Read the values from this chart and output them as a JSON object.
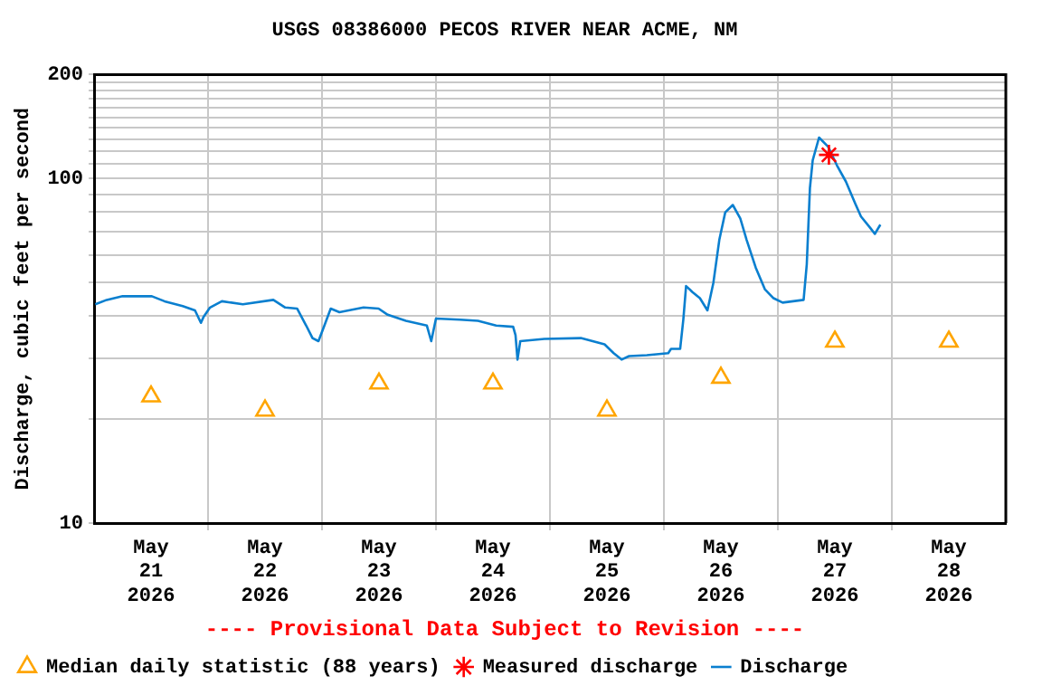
{
  "chart_data": {
    "type": "line",
    "title": "USGS 08386000 PECOS RIVER NEAR ACME, NM",
    "ylabel": "Discharge, cubic feet per second",
    "annotations": [
      "---- Provisional Data Subject to Revision ----"
    ],
    "log": "y",
    "grid": true,
    "legend": "bottom",
    "xlim": [
      "2026-05-21T00:00",
      "2026-05-29T00:00"
    ],
    "xticks": [
      {
        "value": "2026-05-21T12:00",
        "label": "May\n21\n2026"
      },
      {
        "value": "2026-05-22T00:00",
        "label": null
      },
      {
        "value": "2026-05-22T12:00",
        "label": "May\n22\n2026"
      },
      {
        "value": "2026-05-23T00:00",
        "label": null
      },
      {
        "value": "2026-05-23T12:00",
        "label": "May\n23\n2026"
      },
      {
        "value": "2026-05-24T00:00",
        "label": null
      },
      {
        "value": "2026-05-24T12:00",
        "label": "May\n24\n2026"
      },
      {
        "value": "2026-05-25T00:00",
        "label": null
      },
      {
        "value": "2026-05-25T12:00",
        "label": "May\n25\n2026"
      },
      {
        "value": "2026-05-26T00:00",
        "label": null
      },
      {
        "value": "2026-05-26T12:00",
        "label": "May\n26\n2026"
      },
      {
        "value": "2026-05-27T00:00",
        "label": null
      },
      {
        "value": "2026-05-27T12:00",
        "label": "May\n27\n2026"
      },
      {
        "value": "2026-05-28T00:00",
        "label": null
      },
      {
        "value": "2026-05-28T12:00",
        "label": "May\n28\n2026"
      }
    ],
    "ylim": [
      10,
      200
    ],
    "yticks": [
      10,
      {
        "value": 20,
        "label": null
      },
      {
        "value": 30,
        "label": null
      },
      {
        "value": 40,
        "label": null
      },
      {
        "value": 50,
        "label": null
      },
      {
        "value": 60,
        "label": null
      },
      {
        "value": 70,
        "label": null
      },
      {
        "value": 80,
        "label": null
      },
      {
        "value": 90,
        "label": null
      },
      100,
      {
        "value": 110,
        "label": null
      },
      {
        "value": 120,
        "label": null
      },
      {
        "value": 130,
        "label": null
      },
      {
        "value": 140,
        "label": null
      },
      {
        "value": 150,
        "label": null
      },
      {
        "value": 160,
        "label": null
      },
      {
        "value": 170,
        "label": null
      },
      {
        "value": 180,
        "label": null
      },
      {
        "value": 190,
        "label": null
      },
      200
    ],
    "series": [
      {
        "name": "Median daily statistic (88 years)",
        "type": "scatter",
        "marker": "triangle",
        "color": "#ffa500",
        "x": [
          "2026-05-21T12:00",
          "2026-05-22T12:00",
          "2026-05-23T12:00",
          "2026-05-24T12:00",
          "2026-05-25T12:00",
          "2026-05-26T12:00",
          "2026-05-27T12:00",
          "2026-05-28T12:00"
        ],
        "values": [
          23.3,
          21.2,
          25.4,
          25.4,
          21.2,
          26.4,
          33.6,
          33.6
        ]
      },
      {
        "name": "Measured discharge",
        "type": "scatter",
        "marker": "cross",
        "color": "#ff0000",
        "x": [
          "2026-05-27T10:45"
        ],
        "values": [
          117
        ]
      },
      {
        "name": "Discharge",
        "marker": "none",
        "color": "#0a7fcf",
        "x": [
          "2026-05-21T00:15",
          "2026-05-21T02:40",
          "2026-05-21T06:00",
          "2026-05-21T12:10",
          "2026-05-21T14:50",
          "2026-05-21T18:40",
          "2026-05-21T21:15",
          "2026-05-21T22:30",
          "2026-05-21T23:05",
          "2026-05-22T00:25",
          "2026-05-22T02:55",
          "2026-05-22T07:20",
          "2026-05-22T13:45",
          "2026-05-22T16:15",
          "2026-05-22T18:45",
          "2026-05-22T20:40",
          "2026-05-22T22:00",
          "2026-05-22T23:15",
          "2026-05-23T00:30",
          "2026-05-23T01:50",
          "2026-05-23T03:40",
          "2026-05-23T08:45",
          "2026-05-23T11:55",
          "2026-05-23T13:50",
          "2026-05-23T17:40",
          "2026-05-23T22:05",
          "2026-05-23T23:00",
          "2026-05-24T00:00",
          "2026-05-24T05:05",
          "2026-05-24T08:50",
          "2026-05-24T12:40",
          "2026-05-24T16:15",
          "2026-05-24T16:45",
          "2026-05-24T17:10",
          "2026-05-24T17:45",
          "2026-05-24T22:50",
          "2026-05-25T06:30",
          "2026-05-25T11:30",
          "2026-05-25T13:25",
          "2026-05-25T15:05",
          "2026-05-25T16:40",
          "2026-05-25T20:25",
          "2026-05-26T00:55",
          "2026-05-26T01:30",
          "2026-05-26T03:25",
          "2026-05-26T04:05",
          "2026-05-26T04:40",
          "2026-05-26T06:00",
          "2026-05-26T07:35",
          "2026-05-26T09:10",
          "2026-05-26T10:25",
          "2026-05-26T11:40",
          "2026-05-26T12:55",
          "2026-05-26T14:30",
          "2026-05-26T16:05",
          "2026-05-26T17:25",
          "2026-05-26T19:20",
          "2026-05-26T21:15",
          "2026-05-26T23:05",
          "2026-05-27T01:00",
          "2026-05-27T05:25",
          "2026-05-27T06:05",
          "2026-05-27T06:45",
          "2026-05-27T07:20",
          "2026-05-27T08:40",
          "2026-05-27T10:35",
          "2026-05-27T12:25",
          "2026-05-27T14:20",
          "2026-05-27T16:15",
          "2026-05-27T17:30",
          "2026-05-27T19:25",
          "2026-05-27T20:25",
          "2026-05-27T21:35"
        ],
        "values": [
          43.1,
          44.4,
          45.5,
          45.5,
          44.0,
          42.6,
          41.4,
          38.1,
          39.7,
          42.2,
          44.0,
          43.1,
          44.4,
          42.2,
          41.9,
          37.4,
          34.4,
          33.7,
          37.4,
          41.9,
          40.9,
          42.2,
          41.9,
          40.2,
          38.6,
          37.4,
          33.7,
          39.2,
          38.9,
          38.6,
          37.4,
          37.1,
          35.1,
          29.8,
          33.7,
          34.2,
          34.4,
          33.0,
          31.1,
          29.8,
          30.5,
          30.7,
          31.1,
          32.0,
          32.0,
          38.9,
          48.7,
          46.8,
          44.9,
          41.4,
          49.8,
          66.3,
          79.7,
          83.7,
          76.5,
          66.3,
          55.1,
          47.7,
          44.9,
          43.6,
          44.4,
          56.3,
          93.8,
          112.8,
          131.3,
          123.5,
          109.2,
          97.8,
          84.7,
          77.5,
          71.9,
          69.0,
          73.4
        ]
      }
    ]
  }
}
